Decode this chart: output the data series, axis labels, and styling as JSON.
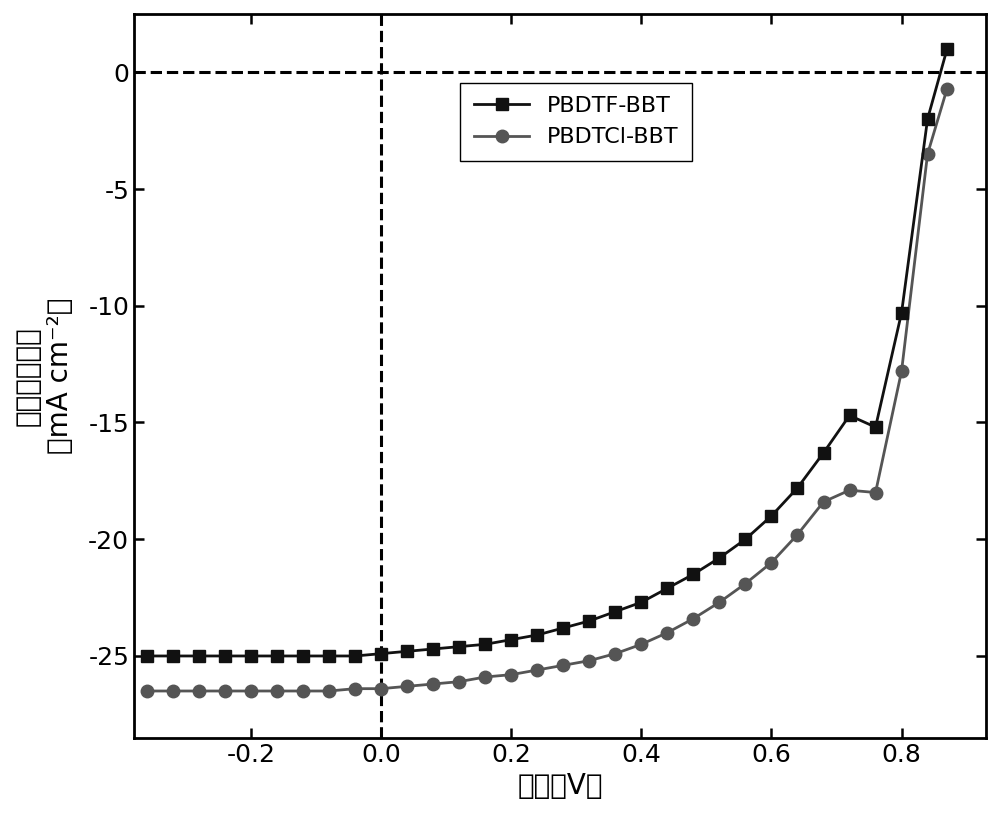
{
  "xlabel_cn": "电压（V）",
  "ylabel_cn": "短路电流密度",
  "ylabel_en": "（mA cm⁻²）",
  "xlim": [
    -0.38,
    0.93
  ],
  "ylim": [
    -28.5,
    2.5
  ],
  "xticks": [
    -0.2,
    0.0,
    0.2,
    0.4,
    0.6,
    0.8
  ],
  "yticks": [
    0,
    -5,
    -10,
    -15,
    -20,
    -25
  ],
  "background_color": "#ffffff",
  "line1_label": "PBDTF-BBT",
  "line2_label": "PBDTCl-BBT",
  "line1_color": "#111111",
  "line2_color": "#555555",
  "line1_marker": "s",
  "line2_marker": "o",
  "dashed_line_color": "#000000",
  "font_size_label": 20,
  "font_size_tick": 18,
  "font_size_legend": 16,
  "pbdtf_x": [
    -0.36,
    -0.32,
    -0.28,
    -0.24,
    -0.2,
    -0.16,
    -0.12,
    -0.08,
    -0.04,
    0.0,
    0.04,
    0.08,
    0.12,
    0.16,
    0.2,
    0.24,
    0.28,
    0.32,
    0.36,
    0.4,
    0.44,
    0.48,
    0.52,
    0.56,
    0.6,
    0.64,
    0.68,
    0.72,
    0.76,
    0.8,
    0.84,
    0.87
  ],
  "pbdtf_y": [
    -25.0,
    -25.0,
    -25.0,
    -25.0,
    -25.0,
    -25.0,
    -25.0,
    -25.0,
    -25.0,
    -24.9,
    -24.8,
    -24.7,
    -24.6,
    -24.5,
    -24.3,
    -24.1,
    -23.8,
    -23.5,
    -23.1,
    -22.7,
    -22.1,
    -21.5,
    -20.8,
    -20.0,
    -19.0,
    -17.8,
    -16.3,
    -14.7,
    -15.2,
    -10.3,
    -2.0,
    1.0
  ],
  "pbdtcl_x": [
    -0.36,
    -0.32,
    -0.28,
    -0.24,
    -0.2,
    -0.16,
    -0.12,
    -0.08,
    -0.04,
    0.0,
    0.04,
    0.08,
    0.12,
    0.16,
    0.2,
    0.24,
    0.28,
    0.32,
    0.36,
    0.4,
    0.44,
    0.48,
    0.52,
    0.56,
    0.6,
    0.64,
    0.68,
    0.72,
    0.76,
    0.8,
    0.84,
    0.87
  ],
  "pbdtcl_y": [
    -26.5,
    -26.5,
    -26.5,
    -26.5,
    -26.5,
    -26.5,
    -26.5,
    -26.5,
    -26.4,
    -26.4,
    -26.3,
    -26.2,
    -26.1,
    -25.9,
    -25.8,
    -25.6,
    -25.4,
    -25.2,
    -24.9,
    -24.5,
    -24.0,
    -23.4,
    -22.7,
    -21.9,
    -21.0,
    -19.8,
    -18.4,
    -17.9,
    -18.0,
    -12.8,
    -3.5,
    -0.7
  ]
}
